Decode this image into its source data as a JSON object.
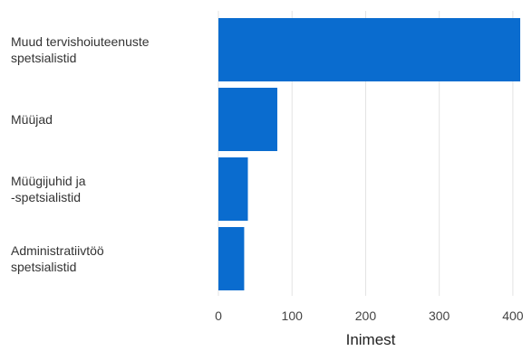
{
  "chart_data": {
    "type": "bar",
    "orientation": "horizontal",
    "categories": [
      [
        "Muud tervishoiuteenuste",
        "spetsialistid"
      ],
      [
        "Müüjad"
      ],
      [
        "Müügijuhid ja",
        "-spetsialistid"
      ],
      [
        "Administratiivtöö",
        "spetsialistid"
      ]
    ],
    "values": [
      410,
      80,
      40,
      35
    ],
    "xlabel": "Inimest",
    "xlim": [
      0,
      410
    ],
    "xticks": [
      0,
      100,
      200,
      300,
      400
    ],
    "bar_color": "#0a6ccf",
    "grid": "vertical",
    "grid_color": "#e3e3e3"
  }
}
